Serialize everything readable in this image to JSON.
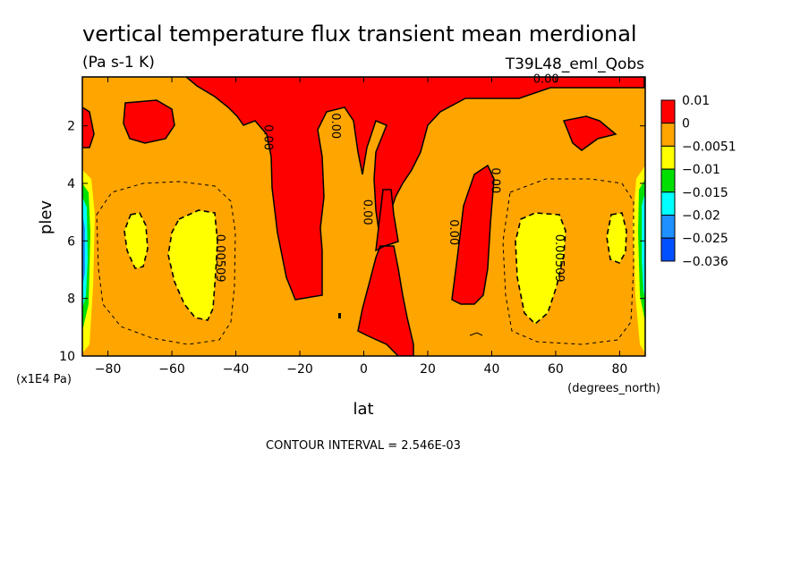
{
  "chart_data": {
    "type": "heatmap",
    "title": "vertical temperature flux transient mean merdional",
    "units": "(Pa s-1 K)",
    "run_label": "T39L48_eml_Qobs",
    "xlabel": "lat",
    "xunits": "(degrees_north)",
    "ylabel": "plev",
    "yunits": "(x1E4 Pa)",
    "xlim": [
      -88,
      88
    ],
    "ylim": [
      10,
      0.3
    ],
    "xticks": [
      -80,
      -60,
      -40,
      -20,
      0,
      20,
      40,
      60,
      80
    ],
    "yticks": [
      2,
      4,
      6,
      8,
      10
    ],
    "legend": {
      "placement": "right",
      "levels": [
        "0.01",
        "0",
        "-0.0051",
        "-0.01",
        "-0.015",
        "-0.02",
        "-0.025",
        "-0.036"
      ],
      "colors": [
        "#ff0000",
        "#ffa500",
        "#ffff00",
        "#00e000",
        "#00ffff",
        "#1e90ff",
        "#0050ff"
      ]
    },
    "contour_labels": [
      {
        "text": "0.00",
        "lat": 57,
        "plev": 0.5
      },
      {
        "text": "0.00",
        "lat": -31,
        "plev": 2.4
      },
      {
        "text": "0.00",
        "lat": -10,
        "plev": 2.0
      },
      {
        "text": "0.00",
        "lat": 0,
        "plev": 5.0
      },
      {
        "text": "0.00",
        "lat": 27,
        "plev": 5.7
      },
      {
        "text": "0.00",
        "lat": 40,
        "plev": 3.9
      },
      {
        "text": "0.00509",
        "lat": -46,
        "plev": 6.6
      },
      {
        "text": "0.00509",
        "lat": 60,
        "plev": 6.6
      }
    ],
    "contour_interval_note": "CONTOUR INTERVAL = 2.546E-03"
  }
}
